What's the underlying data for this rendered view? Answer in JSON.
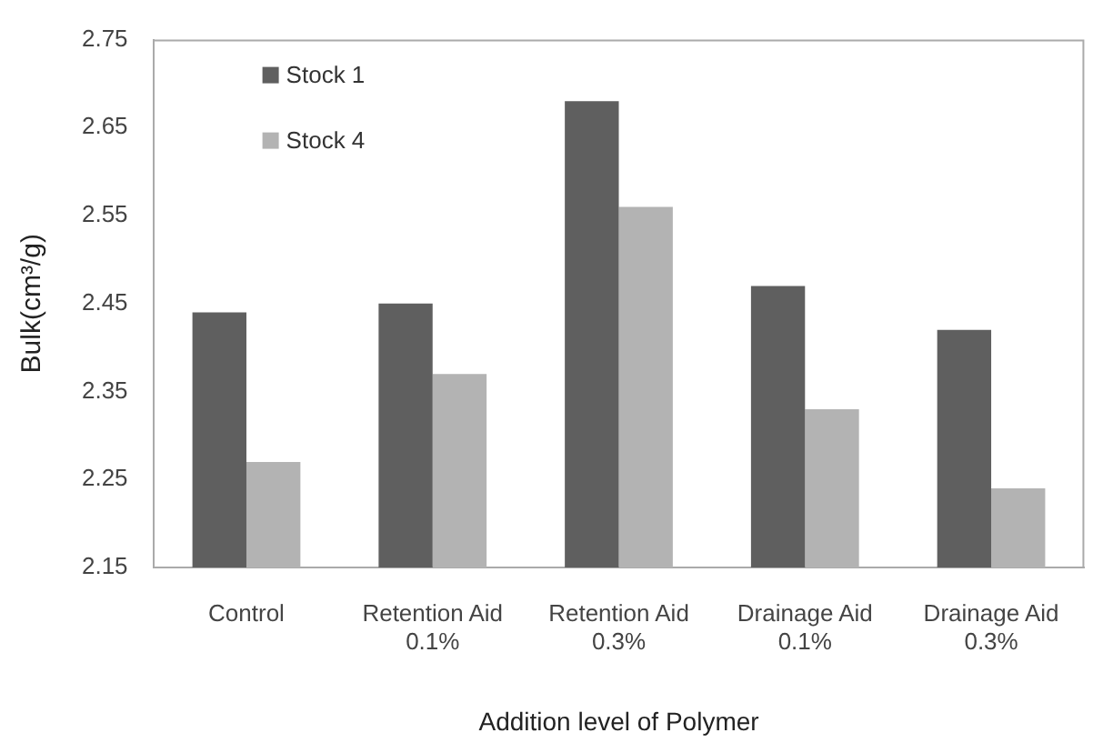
{
  "chart_data": {
    "type": "bar",
    "xlabel": "Addition level of Polymer",
    "ylabel": "Bulk(cm³/g)",
    "categories": [
      "Control",
      "Retention Aid 0.1%",
      "Retention Aid 0.3%",
      "Drainage Aid 0.1%",
      "Drainage Aid 0.3%"
    ],
    "series": [
      {
        "name": "Stock 1",
        "color": "#5f5f5f",
        "values": [
          2.44,
          2.45,
          2.68,
          2.47,
          2.42
        ]
      },
      {
        "name": "Stock 4",
        "color": "#b3b3b3",
        "values": [
          2.27,
          2.37,
          2.56,
          2.33,
          2.24
        ]
      }
    ],
    "ylim": [
      2.15,
      2.75
    ],
    "yticks": [
      2.15,
      2.25,
      2.35,
      2.45,
      2.55,
      2.65,
      2.75
    ],
    "grid": false,
    "legend": "top left"
  }
}
